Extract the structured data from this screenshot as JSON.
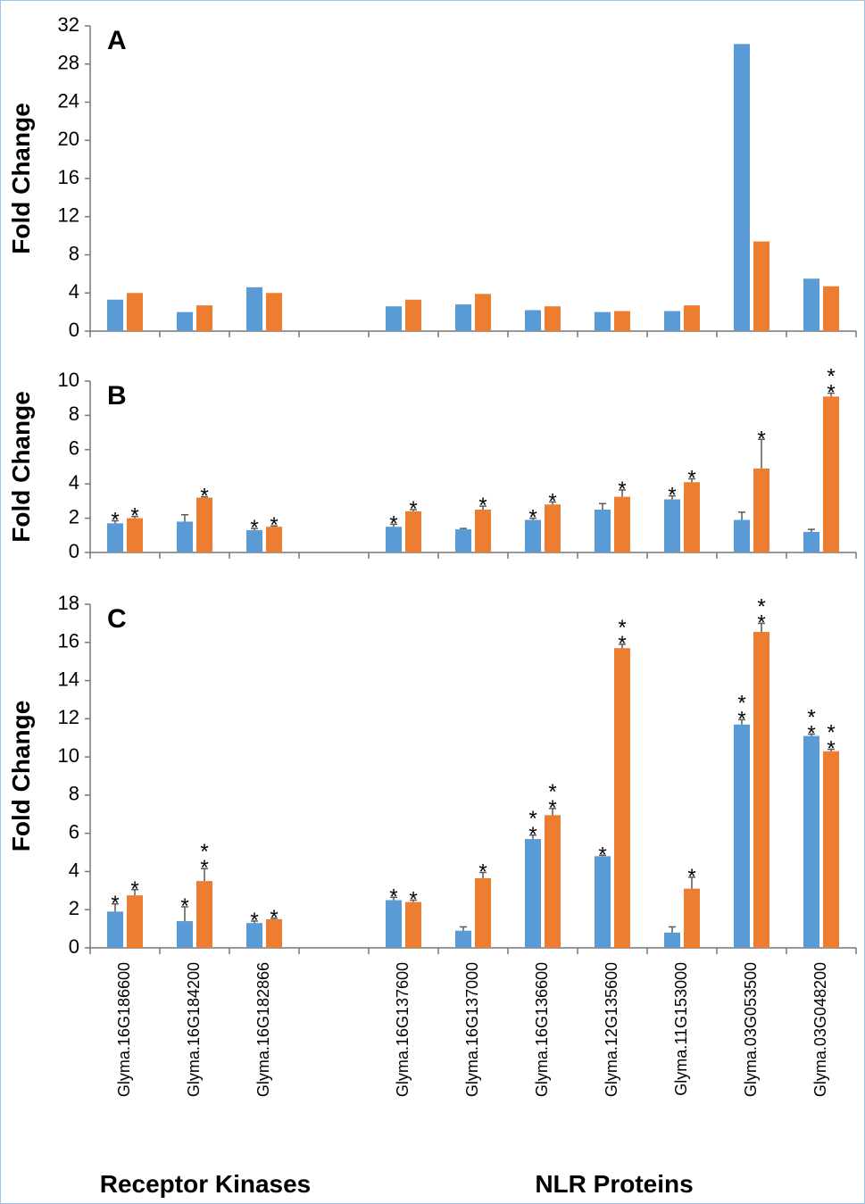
{
  "chart_data": [
    {
      "type": "bar",
      "panel_label": "A",
      "y_label": "Fold Change",
      "ylim": [
        0,
        32
      ],
      "yticks": [
        0,
        4,
        8,
        12,
        16,
        20,
        24,
        28,
        32
      ],
      "series": [
        {
          "color": "#5b9bd5",
          "values": [
            3.3,
            2.0,
            4.6,
            null,
            2.6,
            2.8,
            2.2,
            2.0,
            2.1,
            30.1,
            5.5
          ]
        },
        {
          "color": "#ed7d31",
          "values": [
            4.0,
            2.7,
            4.0,
            null,
            3.3,
            3.9,
            2.6,
            2.1,
            2.7,
            9.4,
            4.7
          ]
        }
      ]
    },
    {
      "type": "bar",
      "panel_label": "B",
      "y_label": "Fold Change",
      "ylim": [
        0,
        10
      ],
      "yticks": [
        0,
        2,
        4,
        6,
        8,
        10
      ],
      "series": [
        {
          "color": "#5b9bd5",
          "values": [
            1.7,
            1.8,
            1.3,
            null,
            1.5,
            1.35,
            1.9,
            2.5,
            3.1,
            1.9,
            1.2
          ],
          "errors": [
            0.15,
            0.4,
            0.1,
            null,
            0.15,
            0.05,
            0.1,
            0.35,
            0.2,
            0.45,
            0.15
          ],
          "annotations": [
            "*",
            null,
            "*",
            null,
            "*",
            null,
            "*",
            null,
            "*",
            null,
            null
          ]
        },
        {
          "color": "#ed7d31",
          "values": [
            2.0,
            3.2,
            1.5,
            null,
            2.4,
            2.5,
            2.8,
            3.25,
            4.1,
            4.9,
            9.1
          ],
          "errors": [
            0.1,
            0.05,
            0.05,
            null,
            0.1,
            0.2,
            0.15,
            0.4,
            0.2,
            1.7,
            0.2
          ],
          "annotations": [
            "*",
            "*",
            "*",
            null,
            "*",
            "*",
            "*",
            "*",
            "*",
            "*",
            "**"
          ]
        }
      ]
    },
    {
      "type": "bar",
      "panel_label": "C",
      "y_label": "Fold Change",
      "ylim": [
        0,
        18
      ],
      "yticks": [
        0,
        2,
        4,
        6,
        8,
        10,
        12,
        14,
        16,
        18
      ],
      "categories": [
        "Glyma.16G186600",
        "Glyma.16G184200",
        "Glyma.16G182866",
        null,
        "Glyma.16G137600",
        "Glyma.16G137000",
        "Glyma.16G136600",
        "Glyma.12G135600",
        "Glyma.11G153000",
        "Glyma.03G053500",
        "Glyma.03G048200"
      ],
      "group_labels": [
        "Receptor Kinases",
        "NLR Proteins"
      ],
      "series": [
        {
          "color": "#5b9bd5",
          "values": [
            1.9,
            1.4,
            1.3,
            null,
            2.5,
            0.9,
            5.7,
            4.8,
            0.8,
            11.7,
            11.1
          ],
          "errors": [
            0.4,
            0.75,
            0.1,
            null,
            0.15,
            0.2,
            0.2,
            0.05,
            0.3,
            0.25,
            0.1
          ],
          "annotations": [
            "*",
            "*",
            "*",
            null,
            "*",
            null,
            "**",
            "*",
            null,
            "**",
            "**"
          ]
        },
        {
          "color": "#ed7d31",
          "values": [
            2.75,
            3.5,
            1.5,
            null,
            2.4,
            3.65,
            6.95,
            15.7,
            3.1,
            16.55,
            10.3
          ],
          "errors": [
            0.3,
            0.65,
            0.05,
            null,
            0.1,
            0.3,
            0.35,
            0.2,
            0.6,
            0.45,
            0.1
          ],
          "annotations": [
            "*",
            "**",
            "*",
            null,
            "*",
            "*",
            "**",
            "**",
            "*",
            "**",
            "**"
          ]
        }
      ]
    }
  ]
}
